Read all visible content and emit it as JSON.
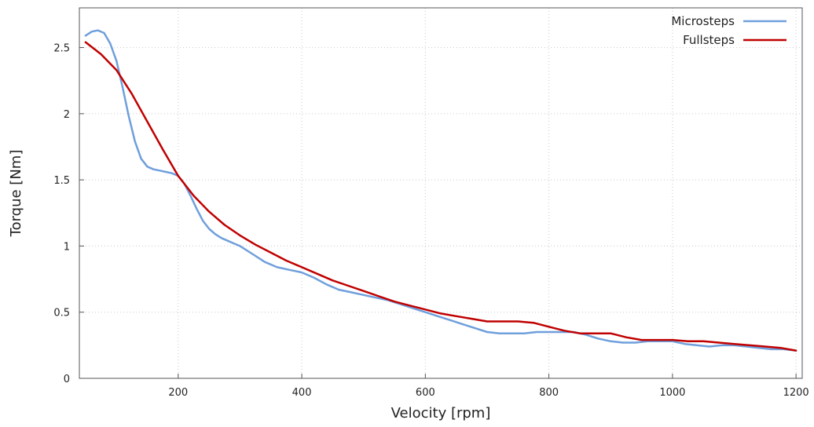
{
  "chart_data": {
    "type": "line",
    "title": "",
    "xlabel": "Velocity [rpm]",
    "ylabel": "Torque [Nm]",
    "xlim": [
      40,
      1210
    ],
    "ylim": [
      0,
      2.8
    ],
    "xticks": [
      200,
      400,
      600,
      800,
      1000,
      1200
    ],
    "yticks": [
      0,
      0.5,
      1,
      1.5,
      2,
      2.5
    ],
    "xtick_labels": [
      "200",
      "400",
      "600",
      "800",
      "1000",
      "1200"
    ],
    "ytick_labels": [
      "0",
      "0.5",
      "1",
      "1.5",
      "2",
      "2.5"
    ],
    "grid": true,
    "legend_position": "top-right",
    "series": [
      {
        "name": "Microsteps",
        "color": "#6f9fdc",
        "x": [
          50,
          60,
          70,
          80,
          90,
          100,
          110,
          120,
          130,
          140,
          150,
          160,
          170,
          180,
          190,
          200,
          210,
          220,
          230,
          240,
          250,
          260,
          270,
          280,
          290,
          300,
          320,
          340,
          360,
          380,
          400,
          420,
          440,
          460,
          480,
          500,
          520,
          540,
          560,
          580,
          600,
          620,
          640,
          660,
          680,
          700,
          720,
          740,
          760,
          780,
          800,
          820,
          840,
          860,
          880,
          900,
          920,
          940,
          960,
          980,
          1000,
          1020,
          1040,
          1060,
          1080,
          1100,
          1120,
          1140,
          1160,
          1180,
          1200
        ],
        "values": [
          2.59,
          2.62,
          2.63,
          2.61,
          2.53,
          2.4,
          2.2,
          1.98,
          1.79,
          1.66,
          1.6,
          1.58,
          1.57,
          1.56,
          1.55,
          1.53,
          1.47,
          1.38,
          1.28,
          1.19,
          1.13,
          1.09,
          1.06,
          1.04,
          1.02,
          1.0,
          0.94,
          0.88,
          0.84,
          0.82,
          0.8,
          0.76,
          0.71,
          0.67,
          0.65,
          0.63,
          0.61,
          0.59,
          0.56,
          0.53,
          0.5,
          0.47,
          0.44,
          0.41,
          0.38,
          0.35,
          0.34,
          0.34,
          0.34,
          0.35,
          0.35,
          0.35,
          0.35,
          0.33,
          0.3,
          0.28,
          0.27,
          0.27,
          0.28,
          0.28,
          0.28,
          0.26,
          0.25,
          0.24,
          0.25,
          0.25,
          0.24,
          0.23,
          0.22,
          0.22,
          0.21
        ]
      },
      {
        "name": "Fullsteps",
        "color": "#c00000",
        "x": [
          50,
          75,
          100,
          125,
          150,
          175,
          200,
          225,
          250,
          275,
          300,
          325,
          350,
          375,
          400,
          425,
          450,
          475,
          500,
          525,
          550,
          575,
          600,
          625,
          650,
          675,
          700,
          725,
          750,
          775,
          800,
          825,
          850,
          875,
          900,
          925,
          950,
          975,
          1000,
          1025,
          1050,
          1075,
          1100,
          1125,
          1150,
          1175,
          1200
        ],
        "values": [
          2.54,
          2.45,
          2.33,
          2.15,
          1.94,
          1.73,
          1.53,
          1.38,
          1.26,
          1.16,
          1.08,
          1.01,
          0.95,
          0.89,
          0.84,
          0.79,
          0.74,
          0.7,
          0.66,
          0.62,
          0.58,
          0.55,
          0.52,
          0.49,
          0.47,
          0.45,
          0.43,
          0.43,
          0.43,
          0.42,
          0.39,
          0.36,
          0.34,
          0.34,
          0.34,
          0.31,
          0.29,
          0.29,
          0.29,
          0.28,
          0.28,
          0.27,
          0.26,
          0.25,
          0.24,
          0.23,
          0.21
        ]
      }
    ]
  }
}
